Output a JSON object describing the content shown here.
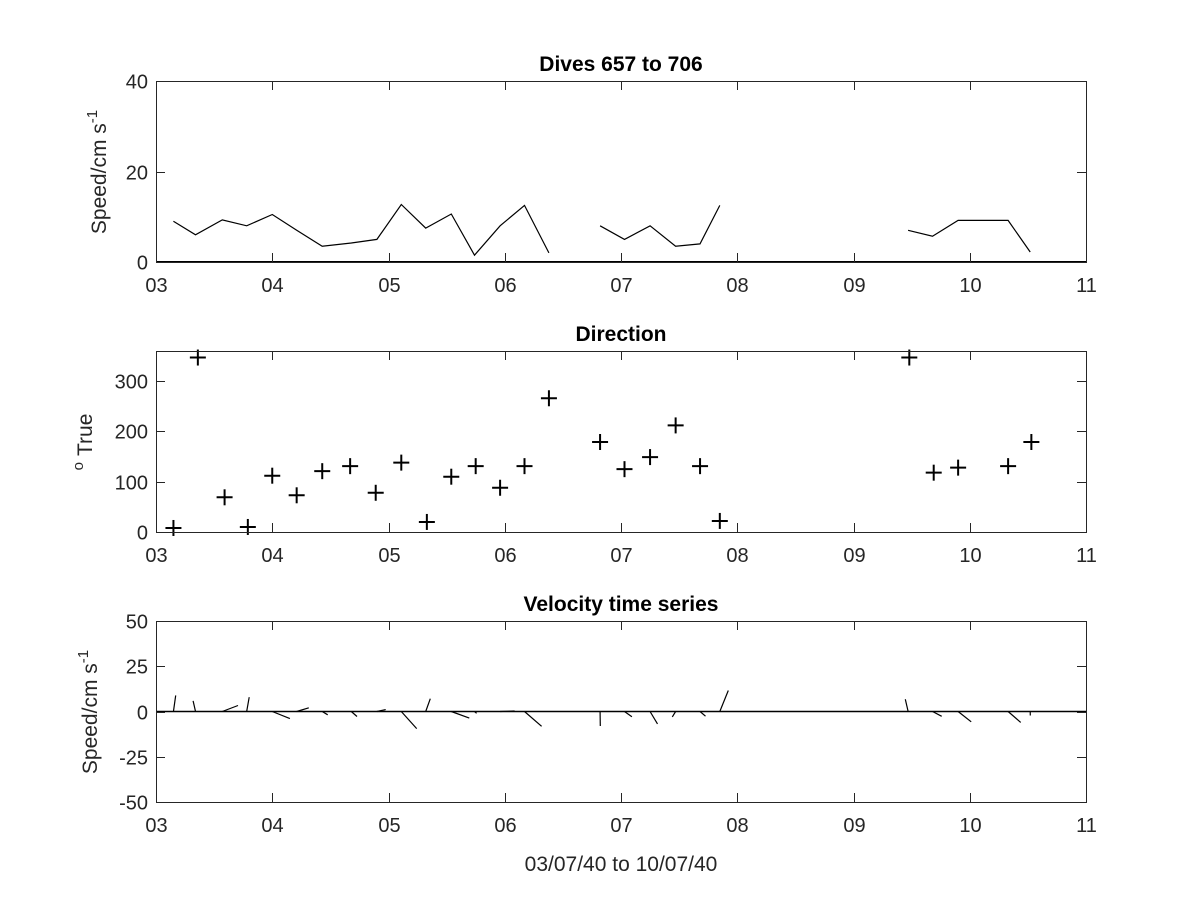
{
  "figure_background": "#ffffff",
  "line_color": "#000000",
  "axis_color": "#262626",
  "chart_data": [
    {
      "type": "line",
      "title": "Dives 657 to 706",
      "xlabel": "",
      "ylabel": "Speed/cm s",
      "ylabel_superscript": "-1",
      "xlim": [
        3,
        11
      ],
      "ylim": [
        0,
        40
      ],
      "xticks": [
        3,
        4,
        5,
        6,
        7,
        8,
        9,
        10,
        11
      ],
      "xtick_labels": [
        "03",
        "04",
        "05",
        "06",
        "07",
        "08",
        "09",
        "10",
        "11"
      ],
      "yticks": [
        0,
        20,
        40
      ],
      "ytick_labels": [
        "0",
        "20",
        "40"
      ],
      "grid": false,
      "segments": [
        {
          "x": [
            3.15,
            3.34,
            3.57,
            3.78,
            4.0,
            4.21,
            4.43,
            4.68,
            4.9,
            5.11,
            5.32,
            5.54,
            5.74,
            5.96,
            6.17,
            6.38
          ],
          "y": [
            9,
            6,
            9.3,
            8,
            10.5,
            7,
            3.5,
            4.2,
            5,
            12.7,
            7.5,
            10.6,
            1.5,
            8,
            12.5,
            2
          ]
        },
        {
          "x": [
            6.82,
            7.03,
            7.25,
            7.47,
            7.68,
            7.85
          ],
          "y": [
            8,
            5,
            8,
            3.5,
            4,
            12.5
          ]
        },
        {
          "x": [
            9.47,
            9.68,
            9.9,
            10.12,
            10.33,
            10.52
          ],
          "y": [
            7,
            5.7,
            9.2,
            9.2,
            9.2,
            2.2
          ]
        }
      ]
    },
    {
      "type": "scatter",
      "title": "Direction",
      "xlabel": "",
      "ylabel": "True",
      "ylabel_superscript": "o",
      "xlim": [
        3,
        11
      ],
      "ylim": [
        0,
        360
      ],
      "xticks": [
        3,
        4,
        5,
        6,
        7,
        8,
        9,
        10,
        11
      ],
      "xtick_labels": [
        "03",
        "04",
        "05",
        "06",
        "07",
        "08",
        "09",
        "10",
        "11"
      ],
      "yticks": [
        0,
        100,
        200,
        300
      ],
      "ytick_labels": [
        "0",
        "100",
        "200",
        "300"
      ],
      "marker": "+",
      "grid": false,
      "x": [
        3.15,
        3.36,
        3.59,
        3.79,
        4.0,
        4.21,
        4.43,
        4.67,
        4.89,
        5.11,
        5.33,
        5.54,
        5.75,
        5.96,
        6.17,
        6.38,
        6.82,
        7.03,
        7.25,
        7.47,
        7.68,
        7.85,
        9.48,
        9.69,
        9.9,
        10.33,
        10.53
      ],
      "y": [
        8,
        347,
        69,
        10,
        112,
        73,
        121,
        131,
        78,
        138,
        20,
        110,
        131,
        88,
        131,
        266,
        179,
        125,
        149,
        212,
        131,
        22,
        347,
        118,
        128,
        131,
        179
      ]
    },
    {
      "type": "stick",
      "title": "Velocity time series",
      "xlabel": "03/07/40 to 10/07/40",
      "ylabel": "Speed/cm s",
      "ylabel_superscript": "-1",
      "xlim": [
        3,
        11
      ],
      "ylim": [
        -50,
        50
      ],
      "xticks": [
        3,
        4,
        5,
        6,
        7,
        8,
        9,
        10,
        11
      ],
      "xtick_labels": [
        "03",
        "04",
        "05",
        "06",
        "07",
        "08",
        "09",
        "10",
        "11"
      ],
      "yticks": [
        -50,
        -25,
        0,
        25,
        50
      ],
      "ytick_labels": [
        "-50",
        "-25",
        "0",
        "25",
        "50"
      ],
      "grid": false,
      "x": [
        3.15,
        3.34,
        3.57,
        3.78,
        4.0,
        4.21,
        4.43,
        4.68,
        4.9,
        5.11,
        5.32,
        5.54,
        5.74,
        5.96,
        6.17,
        6.82,
        7.03,
        7.25,
        7.47,
        7.68,
        7.85,
        9.47,
        9.68,
        9.9,
        10.33,
        10.52
      ],
      "speed": [
        9,
        6,
        9.3,
        8,
        10.5,
        7,
        3.5,
        4.2,
        5,
        12.7,
        7.5,
        10.6,
        1.5,
        8,
        12.5,
        8,
        5,
        8,
        3.5,
        4,
        12.5,
        7,
        5.7,
        9.2,
        9.2,
        2.2
      ],
      "direction": [
        8,
        347,
        69,
        10,
        112,
        73,
        121,
        131,
        78,
        138,
        20,
        110,
        131,
        88,
        131,
        179,
        125,
        149,
        212,
        131,
        22,
        347,
        118,
        128,
        131,
        179
      ]
    }
  ]
}
